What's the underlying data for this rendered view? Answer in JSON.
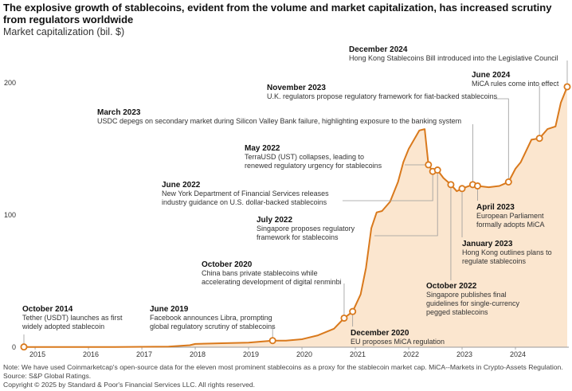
{
  "chart_data": {
    "type": "area",
    "title": "The explosive growth of stablecoins, evident from the volume and market capitalization, has increased scrutiny from regulators worldwide",
    "subtitle": "Market capitalization (bil. $)",
    "color": "#d9791c",
    "area_color": "#fbe6cf",
    "x": [
      2014.79,
      2015.0,
      2015.5,
      2016.0,
      2016.5,
      2017.0,
      2017.5,
      2017.9,
      2018.0,
      2018.5,
      2019.0,
      2019.45,
      2019.7,
      2020.0,
      2020.3,
      2020.6,
      2020.79,
      2020.95,
      2021.1,
      2021.2,
      2021.3,
      2021.4,
      2021.5,
      2021.65,
      2021.8,
      2021.9,
      2022.0,
      2022.1,
      2022.2,
      2022.3,
      2022.37,
      2022.45,
      2022.54,
      2022.65,
      2022.79,
      2022.9,
      2023.0,
      2023.2,
      2023.29,
      2023.5,
      2023.7,
      2023.87,
      2024.0,
      2024.1,
      2024.3,
      2024.45,
      2024.6,
      2024.75,
      2024.85,
      2024.97
    ],
    "values": [
      0.2,
      0.2,
      0.2,
      0.2,
      0.2,
      0.3,
      0.5,
      1.5,
      2.5,
      3,
      3.5,
      5,
      5,
      6,
      9,
      14,
      22,
      27,
      40,
      60,
      90,
      102,
      103,
      110,
      125,
      140,
      150,
      157,
      164,
      165,
      138,
      133,
      134,
      128,
      123,
      118,
      120,
      123,
      122,
      121,
      122,
      125,
      135,
      140,
      157,
      158,
      165,
      167,
      185,
      197
    ],
    "xlim": [
      2014.79,
      2025.0
    ],
    "ylim": [
      0,
      200
    ],
    "xticks": [
      2015,
      2016,
      2017,
      2018,
      2019,
      2020,
      2021,
      2022,
      2023,
      2024
    ],
    "yticks": [
      0,
      100,
      200
    ],
    "annotations": [
      {
        "date": "October 2014",
        "lines": [
          "Tether (USDT) launches as first",
          "widely adopted stablecoin"
        ]
      },
      {
        "date": "June 2019",
        "lines": [
          "Facebook announces Libra, prompting",
          "global regulatory scrutiny of stablecoins"
        ]
      },
      {
        "date": "October 2020",
        "lines": [
          "China bans private stablecoins while",
          "accelerating development of digital renminbi"
        ]
      },
      {
        "date": "December 2020",
        "lines": [
          "EU proposes MiCA regulation"
        ]
      },
      {
        "date": "May 2022",
        "lines": [
          "TerraUSD (UST) collapses, leading to",
          "renewed regulatory urgency for stablecoins"
        ]
      },
      {
        "date": "June 2022",
        "lines": [
          "New York Department of Financial Services releases",
          "industry guidance on U.S. dollar-backed stablecoins"
        ]
      },
      {
        "date": "July 2022",
        "lines": [
          "Singapore proposes regulatory",
          "framework for stablecoins"
        ]
      },
      {
        "date": "October 2022",
        "lines": [
          "Singapore publishes final",
          "guidelines for single-currency",
          "pegged stablecoins"
        ]
      },
      {
        "date": "January 2023",
        "lines": [
          "Hong Kong outlines plans to",
          "regulate stablecoins"
        ]
      },
      {
        "date": "March 2023",
        "lines": [
          "USDC depegs on secondary market during Silicon Valley Bank failure, highlighting exposure to the banking system"
        ]
      },
      {
        "date": "April 2023",
        "lines": [
          "European Parliament",
          "formally adopts MiCA"
        ]
      },
      {
        "date": "November 2023",
        "lines": [
          "U.K. regulators propose regulatory framework for fiat-backed stablecoins"
        ]
      },
      {
        "date": "June 2024",
        "lines": [
          "MiCA rules come into effect"
        ]
      },
      {
        "date": "December 2024",
        "lines": [
          "Hong Kong Stablecoins Bill introduced into the Legislative Council"
        ]
      }
    ],
    "note": "Note: We have used Coinmarketcap's open-source data for the eleven most prominent stablecoins as a proxy for the stablecoin market cap. MiCA--Markets in Crypto-Assets Regulation. Source: S&P Global Ratings.",
    "copyright": "Copyright © 2025 by Standard & Poor's Financial Services LLC. All rights reserved."
  }
}
